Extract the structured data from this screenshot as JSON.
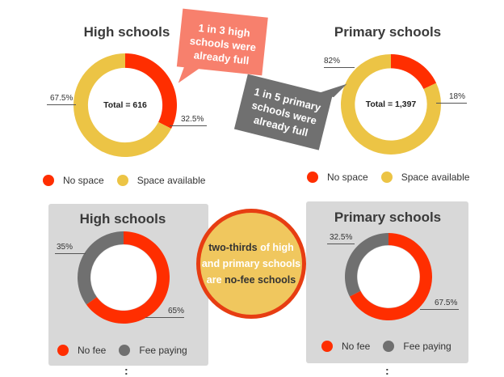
{
  "colors": {
    "no_space": "#ff2e00",
    "space_available": "#ecc445",
    "no_fee": "#ff2e00",
    "fee_paying": "#707070",
    "callout_red": "#f7806d",
    "callout_gray": "#707070",
    "panel_bg": "#d8d8d8"
  },
  "chart_data": [
    {
      "type": "pie",
      "title": "High schools",
      "center_label": "Total = 616",
      "series": [
        {
          "name": "No space",
          "value": 32.5,
          "label": "32.5%"
        },
        {
          "name": "Space available",
          "value": 67.5,
          "label": "67.5%"
        }
      ],
      "legend": [
        "No space",
        "Space available"
      ]
    },
    {
      "type": "pie",
      "title": "Primary schools",
      "center_label": "Total = 1,397",
      "series": [
        {
          "name": "No space",
          "value": 18,
          "label": "18%"
        },
        {
          "name": "Space available",
          "value": 82,
          "label": "82%"
        }
      ],
      "legend": [
        "No space",
        "Space available"
      ]
    },
    {
      "type": "pie",
      "title": "High schools",
      "series": [
        {
          "name": "No fee",
          "value": 65,
          "label": "65%"
        },
        {
          "name": "Fee paying",
          "value": 35,
          "label": "35%"
        }
      ],
      "legend": [
        "No fee",
        "Fee paying"
      ]
    },
    {
      "type": "pie",
      "title": "Primary schools",
      "series": [
        {
          "name": "No fee",
          "value": 67.5,
          "label": "67.5%"
        },
        {
          "name": "Fee paying",
          "value": 32.5,
          "label": "32.5%"
        }
      ],
      "legend": [
        "No fee",
        "Fee paying"
      ]
    }
  ],
  "callouts": {
    "high": "1 in 3 high schools were already full",
    "primary": "1 in 5 primary schools were already full"
  },
  "center_note": {
    "part1": "two-thirds",
    "part2": " of high and primary schools are ",
    "part3": "no-fee schools"
  },
  "separator": ":"
}
